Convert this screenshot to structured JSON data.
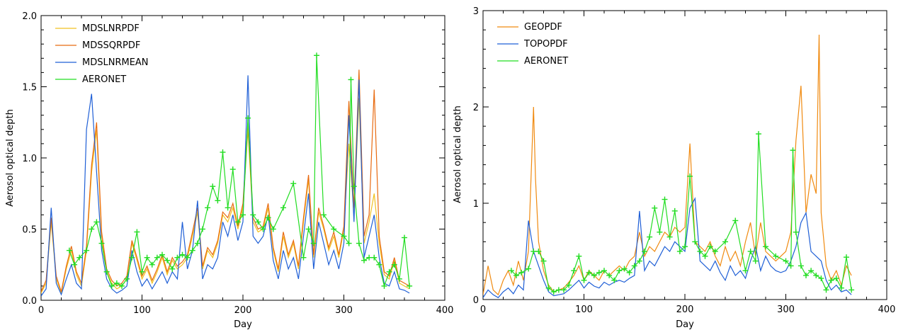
{
  "chart_data": [
    {
      "type": "line",
      "xlabel": "Day",
      "ylabel": "Aerosol optical depth",
      "xlim": [
        0,
        400
      ],
      "ylim": [
        0,
        2.0
      ],
      "xticks": [
        "0",
        "100",
        "200",
        "300",
        "400"
      ],
      "yticks": [
        "0.0",
        "0.5",
        "1.0",
        "1.5",
        "2.0"
      ],
      "legend_position": "top-left",
      "series": [
        {
          "name": "MDSLNRPDF",
          "color": "#f0c020",
          "x": [
            0,
            5,
            10,
            15,
            20,
            25,
            30,
            35,
            40,
            45,
            50,
            55,
            60,
            65,
            70,
            75,
            80,
            85,
            90,
            95,
            100,
            105,
            110,
            115,
            120,
            125,
            130,
            135,
            140,
            145,
            150,
            155,
            160,
            165,
            170,
            175,
            180,
            185,
            190,
            195,
            200,
            205,
            210,
            215,
            220,
            225,
            230,
            235,
            240,
            245,
            250,
            255,
            260,
            265,
            270,
            275,
            280,
            285,
            290,
            295,
            300,
            305,
            310,
            315,
            320,
            325,
            330,
            335,
            340,
            345,
            350,
            355,
            360,
            365
          ],
          "y": [
            0.05,
            0.12,
            0.55,
            0.15,
            0.05,
            0.22,
            0.35,
            0.18,
            0.1,
            0.35,
            0.9,
            1.2,
            0.45,
            0.2,
            0.12,
            0.08,
            0.1,
            0.15,
            0.4,
            0.28,
            0.15,
            0.22,
            0.12,
            0.2,
            0.3,
            0.18,
            0.28,
            0.22,
            0.25,
            0.3,
            0.45,
            0.62,
            0.22,
            0.35,
            0.3,
            0.4,
            0.6,
            0.55,
            0.65,
            0.5,
            0.65,
            1.2,
            0.55,
            0.48,
            0.5,
            0.65,
            0.35,
            0.2,
            0.45,
            0.3,
            0.4,
            0.22,
            0.55,
            0.85,
            0.3,
            0.62,
            0.5,
            0.35,
            0.45,
            0.3,
            0.5,
            1.1,
            0.6,
            1.42,
            0.4,
            0.55,
            0.75,
            0.4,
            0.18,
            0.15,
            0.28,
            0.12,
            0.1,
            0.08
          ]
        },
        {
          "name": "MDSSQRPDF",
          "color": "#e86a10",
          "x": [
            0,
            5,
            10,
            15,
            20,
            25,
            30,
            35,
            40,
            45,
            50,
            55,
            60,
            65,
            70,
            75,
            80,
            85,
            90,
            95,
            100,
            105,
            110,
            115,
            120,
            125,
            130,
            135,
            140,
            145,
            150,
            155,
            160,
            165,
            170,
            175,
            180,
            185,
            190,
            195,
            200,
            205,
            210,
            215,
            220,
            225,
            230,
            235,
            240,
            245,
            250,
            255,
            260,
            265,
            270,
            275,
            280,
            285,
            290,
            295,
            300,
            305,
            310,
            315,
            320,
            325,
            330,
            335,
            340,
            345,
            350,
            355,
            360,
            365
          ],
          "y": [
            0.06,
            0.14,
            0.58,
            0.17,
            0.06,
            0.24,
            0.38,
            0.2,
            0.12,
            0.38,
            0.95,
            1.25,
            0.48,
            0.22,
            0.14,
            0.1,
            0.12,
            0.17,
            0.42,
            0.3,
            0.17,
            0.24,
            0.14,
            0.22,
            0.32,
            0.2,
            0.3,
            0.24,
            0.27,
            0.32,
            0.48,
            0.65,
            0.24,
            0.37,
            0.32,
            0.42,
            0.62,
            0.58,
            0.68,
            0.52,
            0.68,
            1.25,
            0.58,
            0.5,
            0.52,
            0.68,
            0.37,
            0.22,
            0.48,
            0.32,
            0.42,
            0.24,
            0.58,
            0.88,
            0.32,
            0.65,
            0.52,
            0.37,
            0.48,
            0.32,
            0.52,
            1.4,
            0.65,
            1.62,
            0.45,
            0.6,
            1.48,
            0.45,
            0.2,
            0.17,
            0.3,
            0.14,
            0.12,
            0.1
          ]
        },
        {
          "name": "MDSLNRMEAN",
          "color": "#1f5fd6",
          "x": [
            0,
            5,
            10,
            15,
            20,
            25,
            30,
            35,
            40,
            45,
            50,
            55,
            60,
            65,
            70,
            75,
            80,
            85,
            90,
            95,
            100,
            105,
            110,
            115,
            120,
            125,
            130,
            135,
            140,
            145,
            150,
            155,
            160,
            165,
            170,
            175,
            180,
            185,
            190,
            195,
            200,
            205,
            210,
            215,
            220,
            225,
            230,
            235,
            240,
            245,
            250,
            255,
            260,
            265,
            270,
            275,
            280,
            285,
            290,
            295,
            300,
            305,
            310,
            315,
            320,
            325,
            330,
            335,
            340,
            345,
            350,
            355,
            360,
            365
          ],
          "y": [
            0.03,
            0.08,
            0.65,
            0.12,
            0.04,
            0.15,
            0.25,
            0.12,
            0.08,
            1.2,
            1.45,
            0.9,
            0.35,
            0.15,
            0.08,
            0.05,
            0.07,
            0.1,
            0.35,
            0.2,
            0.1,
            0.15,
            0.08,
            0.14,
            0.2,
            0.12,
            0.2,
            0.15,
            0.55,
            0.22,
            0.35,
            0.7,
            0.15,
            0.25,
            0.22,
            0.3,
            0.55,
            0.45,
            0.6,
            0.42,
            0.55,
            1.58,
            0.45,
            0.4,
            0.45,
            0.6,
            0.28,
            0.15,
            0.35,
            0.22,
            0.3,
            0.15,
            0.45,
            0.75,
            0.22,
            0.55,
            0.4,
            0.25,
            0.35,
            0.22,
            0.4,
            1.3,
            0.55,
            1.55,
            0.3,
            0.45,
            0.6,
            0.3,
            0.12,
            0.1,
            0.2,
            0.08,
            0.07,
            0.05
          ]
        },
        {
          "name": "AERONET",
          "color": "#22dd22",
          "marker": "+",
          "x": [
            28,
            33,
            38,
            45,
            50,
            55,
            60,
            65,
            70,
            75,
            80,
            85,
            90,
            95,
            100,
            105,
            110,
            115,
            120,
            125,
            130,
            135,
            140,
            145,
            150,
            155,
            160,
            165,
            170,
            175,
            180,
            185,
            190,
            195,
            200,
            205,
            210,
            215,
            220,
            225,
            230,
            240,
            250,
            260,
            265,
            270,
            273,
            280,
            290,
            300,
            305,
            307,
            310,
            315,
            320,
            325,
            330,
            335,
            340,
            345,
            350,
            355,
            360,
            365
          ],
          "y": [
            0.35,
            0.25,
            0.3,
            0.35,
            0.5,
            0.55,
            0.4,
            0.2,
            0.1,
            0.12,
            0.1,
            0.15,
            0.3,
            0.48,
            0.2,
            0.3,
            0.25,
            0.3,
            0.32,
            0.28,
            0.22,
            0.3,
            0.32,
            0.3,
            0.35,
            0.4,
            0.5,
            0.65,
            0.8,
            0.7,
            1.04,
            0.65,
            0.92,
            0.55,
            0.6,
            1.28,
            0.6,
            0.55,
            0.5,
            0.58,
            0.5,
            0.65,
            0.82,
            0.3,
            0.5,
            0.4,
            1.72,
            0.6,
            0.5,
            0.45,
            0.4,
            1.55,
            0.8,
            0.4,
            0.28,
            0.3,
            0.3,
            0.25,
            0.1,
            0.2,
            0.25,
            0.15,
            0.44,
            0.1
          ]
        }
      ]
    },
    {
      "type": "line",
      "xlabel": "Day",
      "ylabel": "Aerosol optical depth",
      "xlim": [
        0,
        400
      ],
      "ylim": [
        0,
        3
      ],
      "xticks": [
        "0",
        "100",
        "200",
        "300",
        "400"
      ],
      "yticks": [
        "0",
        "1",
        "2",
        "3"
      ],
      "legend_position": "top-left",
      "series": [
        {
          "name": "GEOPDF",
          "color": "#f08a10",
          "x": [
            0,
            5,
            10,
            15,
            20,
            25,
            30,
            35,
            40,
            45,
            50,
            52,
            55,
            60,
            65,
            70,
            75,
            80,
            85,
            90,
            95,
            100,
            105,
            110,
            115,
            120,
            125,
            130,
            135,
            140,
            145,
            150,
            155,
            160,
            165,
            170,
            175,
            180,
            185,
            190,
            195,
            200,
            205,
            210,
            215,
            220,
            225,
            230,
            235,
            240,
            245,
            250,
            255,
            260,
            265,
            270,
            275,
            280,
            285,
            290,
            295,
            300,
            305,
            310,
            315,
            320,
            325,
            330,
            333,
            335,
            340,
            345,
            350,
            355,
            360,
            365
          ],
          "y": [
            0.05,
            0.35,
            0.1,
            0.05,
            0.2,
            0.3,
            0.15,
            0.4,
            0.2,
            0.5,
            2.0,
            1.25,
            0.6,
            0.3,
            0.15,
            0.08,
            0.1,
            0.12,
            0.18,
            0.25,
            0.35,
            0.2,
            0.3,
            0.25,
            0.2,
            0.3,
            0.25,
            0.3,
            0.35,
            0.3,
            0.4,
            0.45,
            0.7,
            0.45,
            0.55,
            0.5,
            0.6,
            0.7,
            0.65,
            0.75,
            0.7,
            0.75,
            1.62,
            0.6,
            0.55,
            0.5,
            0.6,
            0.45,
            0.35,
            0.55,
            0.4,
            0.5,
            0.35,
            0.6,
            0.8,
            0.45,
            0.8,
            0.5,
            0.45,
            0.4,
            0.45,
            0.5,
            0.7,
            1.65,
            2.22,
            0.9,
            1.3,
            1.1,
            2.75,
            0.9,
            0.35,
            0.2,
            0.3,
            0.15,
            0.35,
            0.25
          ]
        },
        {
          "name": "TOPOPDF",
          "color": "#1f5fd6",
          "x": [
            0,
            5,
            10,
            15,
            20,
            25,
            30,
            35,
            40,
            45,
            50,
            55,
            60,
            65,
            70,
            75,
            80,
            85,
            90,
            95,
            100,
            105,
            110,
            115,
            120,
            125,
            130,
            135,
            140,
            145,
            150,
            155,
            160,
            165,
            170,
            175,
            180,
            185,
            190,
            195,
            200,
            205,
            210,
            215,
            220,
            225,
            230,
            235,
            240,
            245,
            250,
            255,
            260,
            265,
            270,
            275,
            280,
            285,
            290,
            295,
            300,
            305,
            310,
            315,
            320,
            325,
            330,
            335,
            340,
            345,
            350,
            355,
            360,
            365
          ],
          "y": [
            0.02,
            0.1,
            0.05,
            0.02,
            0.08,
            0.12,
            0.06,
            0.15,
            0.1,
            0.82,
            0.5,
            0.35,
            0.2,
            0.08,
            0.04,
            0.05,
            0.06,
            0.1,
            0.15,
            0.2,
            0.12,
            0.18,
            0.14,
            0.12,
            0.18,
            0.15,
            0.18,
            0.2,
            0.18,
            0.22,
            0.25,
            0.92,
            0.3,
            0.4,
            0.35,
            0.45,
            0.55,
            0.5,
            0.6,
            0.55,
            0.5,
            0.95,
            1.05,
            0.4,
            0.35,
            0.3,
            0.4,
            0.28,
            0.2,
            0.35,
            0.25,
            0.3,
            0.22,
            0.4,
            0.55,
            0.3,
            0.45,
            0.35,
            0.3,
            0.28,
            0.3,
            0.4,
            0.55,
            0.8,
            0.9,
            0.5,
            0.45,
            0.4,
            0.2,
            0.1,
            0.15,
            0.08,
            0.1,
            0.05
          ]
        },
        {
          "name": "AERONET",
          "color": "#22dd22",
          "marker": "+",
          "x": [
            28,
            33,
            38,
            45,
            50,
            55,
            60,
            65,
            70,
            75,
            80,
            85,
            90,
            95,
            100,
            105,
            110,
            115,
            120,
            125,
            130,
            135,
            140,
            145,
            150,
            155,
            160,
            165,
            170,
            175,
            180,
            185,
            190,
            195,
            200,
            205,
            210,
            215,
            220,
            225,
            230,
            240,
            250,
            260,
            265,
            270,
            273,
            280,
            290,
            300,
            305,
            307,
            310,
            315,
            320,
            325,
            330,
            335,
            340,
            345,
            350,
            355,
            360,
            365
          ],
          "y": [
            0.3,
            0.25,
            0.28,
            0.32,
            0.5,
            0.5,
            0.4,
            0.12,
            0.08,
            0.1,
            0.1,
            0.15,
            0.3,
            0.45,
            0.2,
            0.28,
            0.25,
            0.28,
            0.3,
            0.25,
            0.2,
            0.3,
            0.32,
            0.28,
            0.35,
            0.4,
            0.5,
            0.65,
            0.95,
            0.7,
            1.04,
            0.65,
            0.92,
            0.5,
            0.55,
            1.28,
            0.6,
            0.5,
            0.45,
            0.55,
            0.5,
            0.6,
            0.82,
            0.3,
            0.5,
            0.4,
            1.72,
            0.55,
            0.45,
            0.4,
            0.35,
            1.55,
            0.7,
            0.35,
            0.25,
            0.3,
            0.25,
            0.22,
            0.1,
            0.2,
            0.22,
            0.12,
            0.44,
            0.1
          ]
        }
      ]
    }
  ]
}
